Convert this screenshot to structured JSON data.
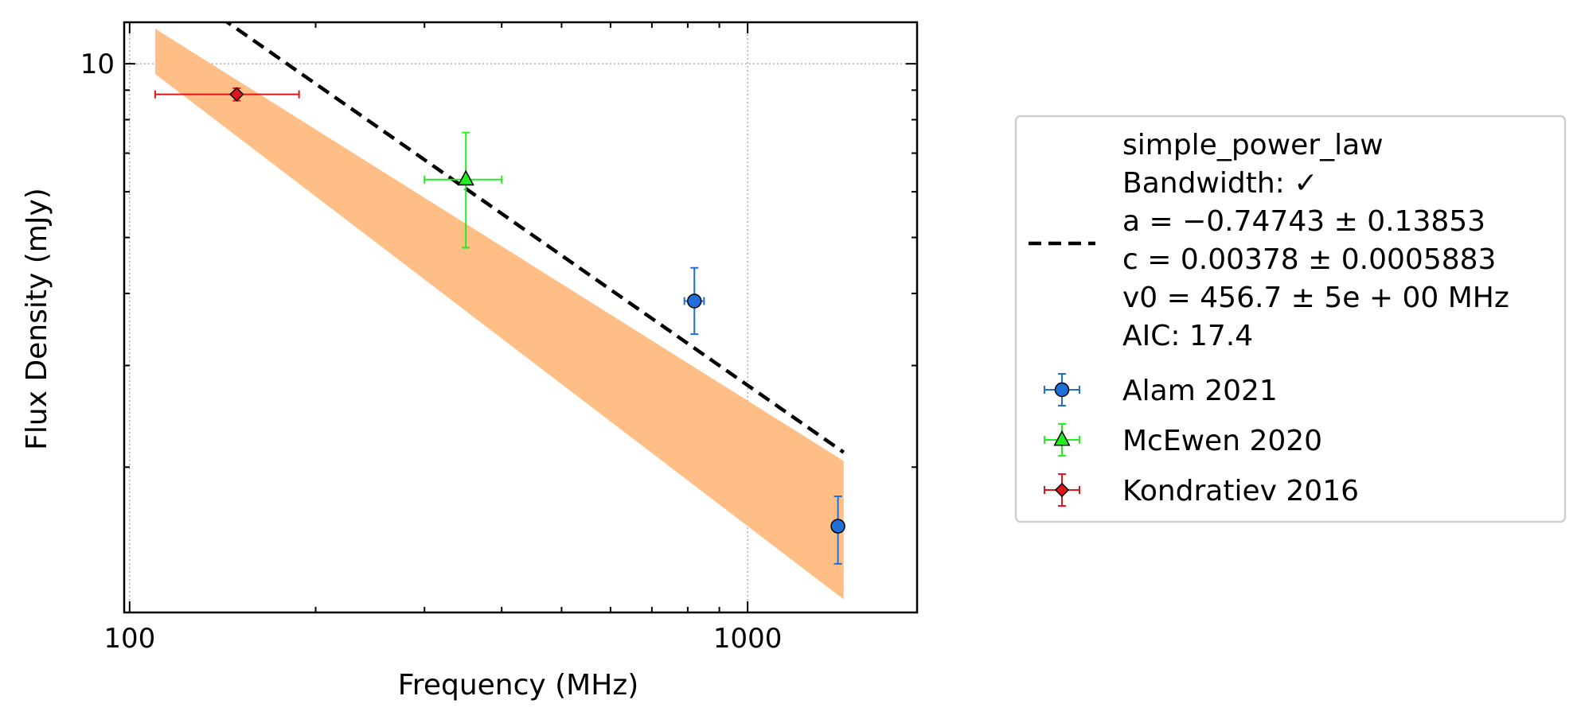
{
  "chart_data": {
    "type": "scatter",
    "title": "",
    "xlabel": "Frequency (MHz)",
    "ylabel": "Flux Density (mJy)",
    "xscale": "log",
    "yscale": "log",
    "xlim": [
      98,
      1880
    ],
    "ylim": [
      1.12,
      11.8
    ],
    "grid": true,
    "legend_position": "right-outside",
    "x_ticks": [
      {
        "value": 100,
        "label": "100"
      },
      {
        "value": 1000,
        "label": "1000"
      }
    ],
    "y_ticks": [
      {
        "value": 10,
        "label": "10"
      }
    ],
    "fit": {
      "name": "simple_power_law",
      "a": -0.74743,
      "v0": 456.7,
      "y_at_v0": 4.98,
      "x_range": [
        110,
        1430
      ],
      "band_at_low": [
        9.6,
        11.5
      ],
      "band_at_high": [
        1.18,
        2.05
      ],
      "color": "#000000",
      "band_color": "#ffbe85"
    },
    "series": [
      {
        "name": "Alam 2021",
        "marker": "circle",
        "color": "#1f6fd6",
        "points": [
          {
            "x": 820,
            "x_err": [
              30,
              30
            ],
            "y": 3.88,
            "y_err": [
              0.48,
              0.55
            ]
          },
          {
            "x": 1400,
            "x_err": [
              0,
              0
            ],
            "y": 1.58,
            "y_err": [
              0.22,
              0.2
            ]
          }
        ]
      },
      {
        "name": "McEwen 2020",
        "marker": "triangle",
        "color": "#22ee22",
        "points": [
          {
            "x": 350,
            "x_err": [
              50,
              50
            ],
            "y": 6.3,
            "y_err": [
              1.5,
              1.3
            ]
          }
        ]
      },
      {
        "name": "Kondratiev 2016",
        "marker": "diamond",
        "color": "#e0161b",
        "points": [
          {
            "x": 149,
            "x_err": [
              39,
              39
            ],
            "y": 8.85,
            "y_err": [
              0.22,
              0.22
            ]
          }
        ]
      }
    ],
    "legend": {
      "fit_lines": [
        "simple_power_law",
        "Bandwidth: ✓",
        "a = −0.74743 ± 0.13853",
        "c = 0.00378 ± 0.0005883",
        "v0 = 456.7 ± 5e + 00 MHz",
        "AIC: 17.4"
      ],
      "entries": [
        "Alam 2021",
        "McEwen 2020",
        "Kondratiev 2016"
      ]
    }
  }
}
